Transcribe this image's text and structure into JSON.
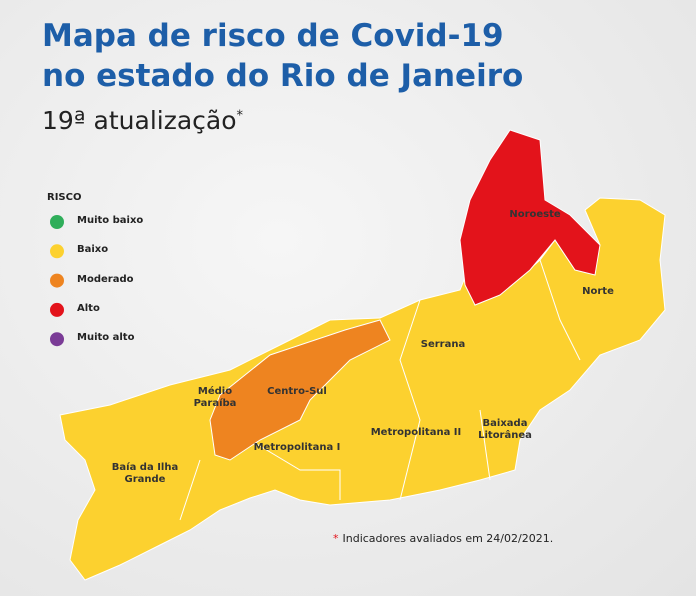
{
  "header": {
    "title_lines": [
      "Mapa de risco de Covid-19",
      "no estado do Rio de Janeiro"
    ],
    "subtitle": "19ª atualização",
    "subtitle_marker": "*"
  },
  "legend": {
    "title": "RISCO",
    "items": [
      {
        "label": "Muito baixo",
        "color": "#2fae5a"
      },
      {
        "label": "Baixo",
        "color": "#fcd12f"
      },
      {
        "label": "Moderado",
        "color": "#ee8420"
      },
      {
        "label": "Alto",
        "color": "#e3131b"
      },
      {
        "label": "Muito alto",
        "color": "#7a3b96"
      }
    ]
  },
  "regions": [
    {
      "label": "Noroeste"
    },
    {
      "label": "Norte"
    },
    {
      "label": "Serrana"
    },
    {
      "label": "Médio Paraíba"
    },
    {
      "label": "Centro-Sul"
    },
    {
      "label": "Metropolitana I"
    },
    {
      "label": "Metropolitana II"
    },
    {
      "label": "Baixada Litorânea"
    },
    {
      "label": "Baía da Ilha Grande"
    }
  ],
  "footnote": {
    "marker": "*",
    "text": "Indicadores avaliados em 24/02/2021."
  }
}
